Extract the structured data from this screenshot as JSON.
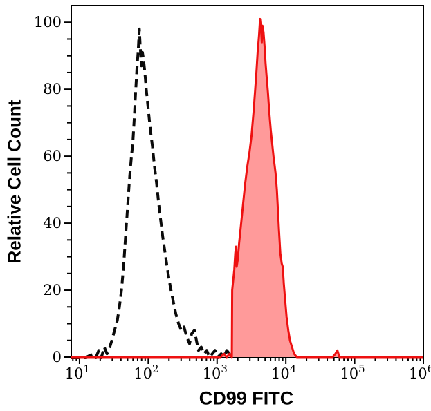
{
  "chart_data": {
    "type": "area",
    "subtype": "flow-cytometry-histogram-overlay",
    "title": "",
    "xlabel": "CD99 FITC",
    "ylabel": "Relative Cell Count",
    "x_scale": "log10",
    "x_decades": [
      1,
      2,
      3,
      4,
      5,
      6
    ],
    "x_minor_mantissas": [
      2,
      3,
      4,
      5,
      6,
      7,
      8,
      9
    ],
    "xlim_log10": [
      0.88,
      6.0
    ],
    "y_ticks": [
      0,
      20,
      40,
      60,
      80,
      100
    ],
    "y_minor_step": 5,
    "ylim": [
      0,
      105
    ],
    "grid": "off",
    "legend": "none",
    "frame_color": "#000000",
    "text_color": "#000000",
    "background_color": "#ffffff",
    "series": [
      {
        "name": "black-dashed-histogram",
        "line_style": "dashed",
        "color": "#0a0a0a",
        "fill": "none",
        "stroke_width": 4,
        "dash_pattern": "12 7",
        "peak_log10x": 1.87,
        "peak_count": 98,
        "points": [
          [
            0.88,
            0
          ],
          [
            1.1,
            0
          ],
          [
            1.2,
            1
          ],
          [
            1.24,
            0
          ],
          [
            1.28,
            2
          ],
          [
            1.32,
            0
          ],
          [
            1.36,
            3
          ],
          [
            1.4,
            1
          ],
          [
            1.44,
            3
          ],
          [
            1.47,
            5
          ],
          [
            1.51,
            8
          ],
          [
            1.55,
            11
          ],
          [
            1.58,
            15
          ],
          [
            1.61,
            20
          ],
          [
            1.64,
            27
          ],
          [
            1.67,
            36
          ],
          [
            1.7,
            45
          ],
          [
            1.73,
            54
          ],
          [
            1.755,
            60
          ],
          [
            1.775,
            64
          ],
          [
            1.795,
            71
          ],
          [
            1.815,
            79
          ],
          [
            1.835,
            86
          ],
          [
            1.855,
            92
          ],
          [
            1.87,
            98
          ],
          [
            1.885,
            92
          ],
          [
            1.9,
            87
          ],
          [
            1.915,
            91
          ],
          [
            1.93,
            89
          ],
          [
            1.95,
            85
          ],
          [
            1.97,
            80
          ],
          [
            2.0,
            74
          ],
          [
            2.03,
            68
          ],
          [
            2.06,
            63
          ],
          [
            2.09,
            57
          ],
          [
            2.12,
            52
          ],
          [
            2.15,
            46
          ],
          [
            2.18,
            41
          ],
          [
            2.21,
            36
          ],
          [
            2.245,
            31
          ],
          [
            2.28,
            26
          ],
          [
            2.32,
            21
          ],
          [
            2.36,
            17
          ],
          [
            2.4,
            13
          ],
          [
            2.44,
            10
          ],
          [
            2.48,
            8
          ],
          [
            2.52,
            9
          ],
          [
            2.56,
            6
          ],
          [
            2.6,
            4
          ],
          [
            2.63,
            7
          ],
          [
            2.67,
            8
          ],
          [
            2.7,
            5
          ],
          [
            2.73,
            2
          ],
          [
            2.77,
            3
          ],
          [
            2.81,
            1
          ],
          [
            2.85,
            2
          ],
          [
            2.89,
            0
          ],
          [
            2.93,
            1
          ],
          [
            2.97,
            2
          ],
          [
            3.01,
            0
          ],
          [
            3.06,
            1
          ],
          [
            3.1,
            0
          ],
          [
            3.14,
            2
          ],
          [
            3.18,
            1
          ],
          [
            3.22,
            0
          ]
        ]
      },
      {
        "name": "red-filled-histogram",
        "line_style": "solid",
        "color": "#ee1111",
        "fill": "#ff9a9a",
        "stroke_width": 3,
        "dash_pattern": "",
        "peak_log10x": 3.625,
        "peak_count": 101,
        "points": [
          [
            0.88,
            0
          ],
          [
            2.0,
            0
          ],
          [
            2.8,
            0
          ],
          [
            3.05,
            0
          ],
          [
            3.1,
            1
          ],
          [
            3.14,
            0
          ],
          [
            3.18,
            1
          ],
          [
            3.215,
            0
          ],
          [
            3.22,
            20
          ],
          [
            3.235,
            23
          ],
          [
            3.25,
            26
          ],
          [
            3.265,
            31
          ],
          [
            3.275,
            33
          ],
          [
            3.285,
            27
          ],
          [
            3.3,
            29
          ],
          [
            3.32,
            34
          ],
          [
            3.35,
            40
          ],
          [
            3.38,
            46
          ],
          [
            3.41,
            52
          ],
          [
            3.44,
            57
          ],
          [
            3.47,
            61
          ],
          [
            3.5,
            66
          ],
          [
            3.53,
            73
          ],
          [
            3.555,
            80
          ],
          [
            3.575,
            86
          ],
          [
            3.59,
            91
          ],
          [
            3.61,
            96
          ],
          [
            3.625,
            101
          ],
          [
            3.64,
            98
          ],
          [
            3.65,
            94
          ],
          [
            3.66,
            99
          ],
          [
            3.675,
            97
          ],
          [
            3.69,
            93
          ],
          [
            3.705,
            88
          ],
          [
            3.72,
            84
          ],
          [
            3.74,
            79
          ],
          [
            3.76,
            73
          ],
          [
            3.78,
            68
          ],
          [
            3.8,
            64
          ],
          [
            3.82,
            60
          ],
          [
            3.85,
            55
          ],
          [
            3.87,
            50
          ],
          [
            3.885,
            44
          ],
          [
            3.9,
            38
          ],
          [
            3.92,
            31
          ],
          [
            3.94,
            28
          ],
          [
            3.955,
            27
          ],
          [
            3.97,
            22
          ],
          [
            3.99,
            17
          ],
          [
            4.01,
            12
          ],
          [
            4.035,
            8
          ],
          [
            4.06,
            5
          ],
          [
            4.09,
            3
          ],
          [
            4.12,
            1
          ],
          [
            4.16,
            0
          ],
          [
            4.4,
            0
          ],
          [
            4.68,
            0
          ],
          [
            4.72,
            1
          ],
          [
            4.75,
            2
          ],
          [
            4.78,
            0
          ],
          [
            5.2,
            0
          ],
          [
            5.6,
            0
          ],
          [
            6.0,
            0
          ]
        ]
      }
    ]
  }
}
